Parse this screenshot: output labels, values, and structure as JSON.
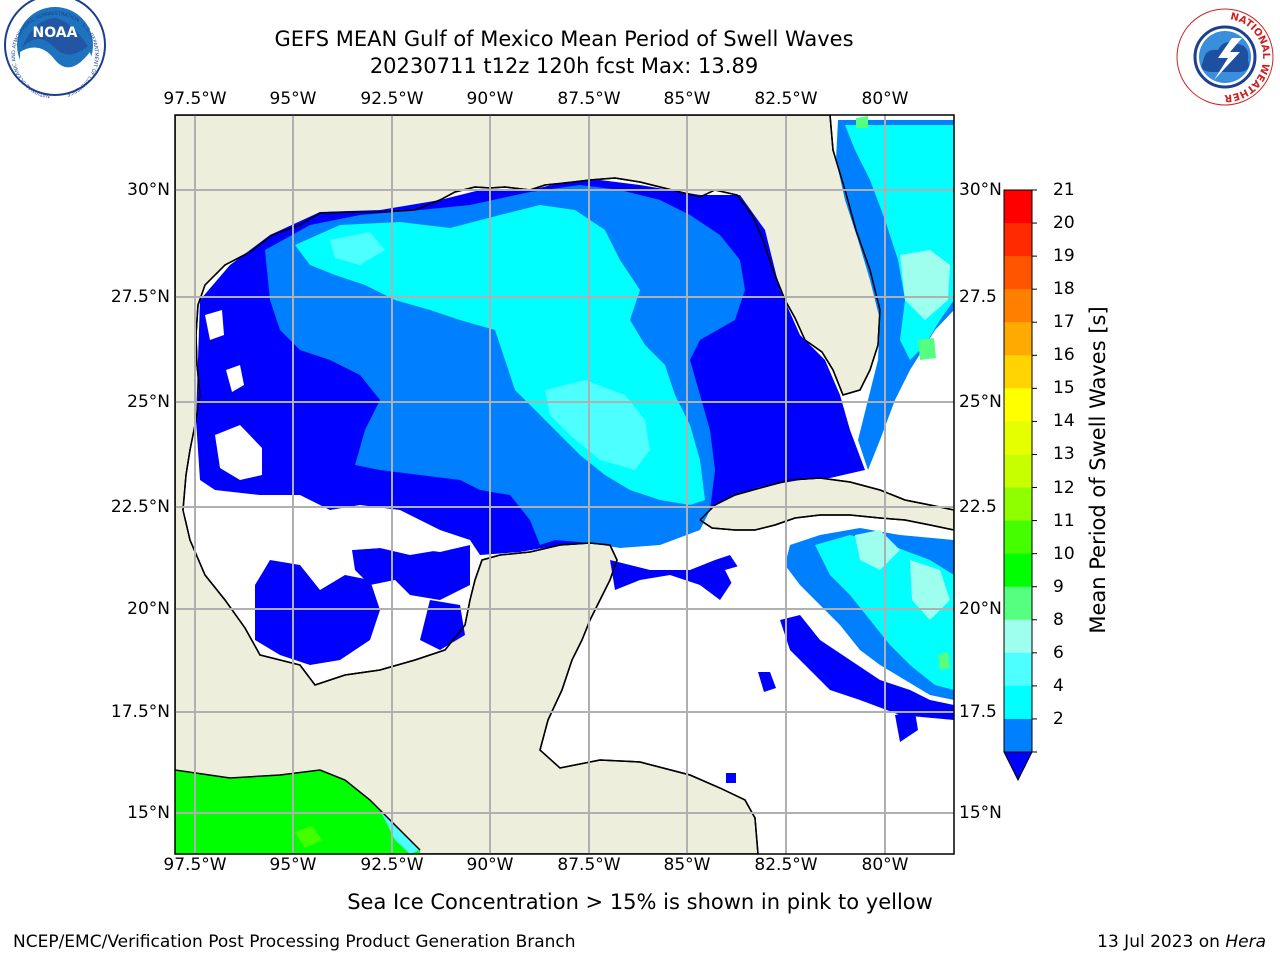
{
  "title_line1": "GEFS MEAN Gulf of Mexico Mean Period of Swell Waves",
  "title_line2": "20230711 t12z 120h fcst   Max: 13.89",
  "lon_labels": [
    "97.5°W",
    "95°W",
    "92.5°W",
    "90°W",
    "87.5°W",
    "85°W",
    "82.5°W",
    "80°W"
  ],
  "lat_labels_left": [
    "30°N",
    "27.5°N",
    "25°N",
    "22.5°N",
    "20°N",
    "17.5°N",
    "15°N"
  ],
  "lat_labels_right": [
    "30°N",
    "27.5",
    "25°N",
    "22.5",
    "20°N",
    "17.5",
    "15°N"
  ],
  "colorbar": {
    "title": "Mean Period of Swell Waves [s]",
    "ticks": [
      "21",
      "20",
      "19",
      "18",
      "17",
      "16",
      "15",
      "14",
      "13",
      "12",
      "11",
      "10",
      "9",
      "8",
      "6",
      "4",
      "2"
    ],
    "colors": [
      "#ff0000",
      "#ff2a00",
      "#ff5500",
      "#ff7f00",
      "#ffaa00",
      "#ffd400",
      "#ffff00",
      "#e5ff00",
      "#c8ff00",
      "#8fff00",
      "#45ff00",
      "#00ff00",
      "#55ff7f",
      "#9fffef",
      "#4dffff",
      "#00ffff",
      "#007fff"
    ],
    "extend_color": "#0000ff"
  },
  "map_colors": {
    "land": "#eeeedc",
    "grid": "#b0b0b0",
    "low": "#0000ff",
    "blue": "#007fff",
    "cyan": "#00ffff",
    "lightcyan": "#4dffff",
    "green": "#00ff00"
  },
  "note": "Sea Ice Concentration > 15% is shown in pink to yellow",
  "footer_left": "NCEP/EMC/Verification Post Processing Product Generation Branch",
  "footer_date": "13 Jul 2023 on",
  "footer_host": "Hera",
  "logos": {
    "noaa": "NOAA",
    "noaa_ring": "NATIONAL OCEANIC AND ATMOSPHERIC ADMINISTRATION · U.S. DEPARTMENT OF COMMERCE",
    "nws_ring": "NATIONAL WEATHER SERVICE"
  }
}
